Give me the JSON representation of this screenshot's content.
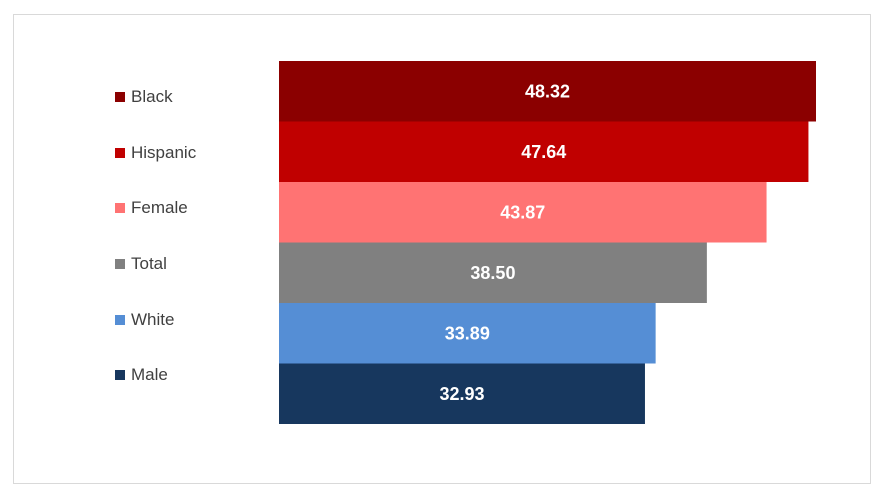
{
  "chart_data": {
    "type": "bar",
    "orientation": "horizontal",
    "title": "",
    "xlabel": "",
    "ylabel": "",
    "categories": [
      "Black",
      "Hispanic",
      "Female",
      "Total",
      "White",
      "Male"
    ],
    "values": [
      48.32,
      47.64,
      43.87,
      38.5,
      33.89,
      32.93
    ],
    "value_labels": [
      "48.32",
      "47.64",
      "43.87",
      "38.50",
      "33.89",
      "32.93"
    ],
    "colors": [
      "#8b0000",
      "#c00000",
      "#ff7373",
      "#808080",
      "#558ed5",
      "#17375e"
    ],
    "legend_position": "left",
    "xlim": [
      0,
      48.32
    ],
    "grid": false
  }
}
